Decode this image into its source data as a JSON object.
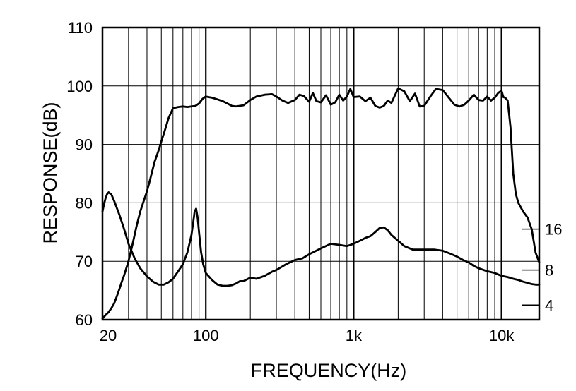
{
  "chart_data": {
    "type": "line",
    "title": "",
    "xlabel": "FREQUENCY(Hz)",
    "ylabel": "RESPONSE(dB)",
    "x_scale": "log",
    "xlim": [
      20,
      18000
    ],
    "ylim": [
      60,
      110
    ],
    "grid": true,
    "x_tick_labels": [
      {
        "value": 20,
        "label": "20"
      },
      {
        "value": 100,
        "label": "100"
      },
      {
        "value": 1000,
        "label": "1k"
      },
      {
        "value": 10000,
        "label": "10k"
      }
    ],
    "y_tick_labels": [
      {
        "value": 60,
        "label": "60"
      },
      {
        "value": 70,
        "label": "70"
      },
      {
        "value": 80,
        "label": "80"
      },
      {
        "value": 90,
        "label": "90"
      },
      {
        "value": 100,
        "label": "100"
      },
      {
        "value": 110,
        "label": "110"
      }
    ],
    "side_scale": [
      {
        "value": 75.5,
        "label": "16"
      },
      {
        "value": 68.5,
        "label": "8"
      },
      {
        "value": 62.5,
        "label": "4"
      }
    ],
    "series": [
      {
        "x": [
          20,
          21,
          22,
          23,
          24,
          25,
          26,
          27,
          28,
          30,
          32,
          34,
          36,
          38,
          40,
          42,
          45,
          48,
          50,
          53,
          56,
          60,
          65,
          70,
          75,
          80,
          85,
          90,
          95,
          100,
          110,
          120,
          130,
          140,
          150,
          160,
          180,
          200,
          220,
          250,
          280,
          300,
          330,
          360,
          400,
          430,
          460,
          500,
          530,
          560,
          600,
          650,
          700,
          750,
          800,
          850,
          900,
          950,
          1000,
          1100,
          1200,
          1300,
          1400,
          1500,
          1600,
          1700,
          1800,
          2000,
          2200,
          2400,
          2600,
          2800,
          3000,
          3300,
          3600,
          4000,
          4400,
          4800,
          5200,
          5600,
          6000,
          6500,
          7000,
          7500,
          8000,
          8500,
          9000,
          9500,
          10000,
          10300,
          10600,
          11000,
          11500,
          12000,
          12500,
          13000,
          14000,
          15000,
          16000,
          17000,
          18000
        ],
        "y": [
          60.2,
          60.8,
          61.3,
          62.0,
          62.8,
          64.0,
          65.2,
          66.5,
          67.6,
          70.0,
          73.0,
          76.0,
          78.5,
          80.3,
          82.0,
          84.0,
          87.0,
          89.0,
          90.5,
          92.5,
          94.5,
          96.2,
          96.4,
          96.5,
          96.4,
          96.5,
          96.6,
          97.0,
          97.8,
          98.2,
          98.0,
          97.7,
          97.4,
          97.0,
          96.6,
          96.5,
          96.7,
          97.6,
          98.2,
          98.5,
          98.6,
          98.2,
          97.5,
          97.1,
          97.6,
          98.5,
          98.3,
          97.3,
          98.8,
          97.4,
          97.2,
          98.4,
          96.8,
          97.2,
          98.5,
          97.5,
          98.2,
          99.5,
          98.1,
          98.2,
          97.4,
          98.0,
          96.6,
          96.3,
          96.6,
          97.5,
          97.1,
          99.6,
          99.1,
          97.4,
          98.7,
          96.5,
          96.6,
          98.2,
          99.5,
          99.3,
          98.0,
          96.8,
          96.5,
          96.8,
          97.5,
          98.5,
          97.6,
          97.5,
          98.2,
          97.5,
          98.0,
          98.8,
          99.2,
          98.1,
          98.0,
          97.5,
          93.0,
          85.0,
          81.5,
          80.0,
          78.5,
          77.5,
          75.5,
          71.5,
          69.8
        ]
      },
      {
        "x": [
          20,
          20.5,
          21,
          21.5,
          22,
          23,
          24,
          26,
          28,
          30,
          33,
          36,
          40,
          44,
          48,
          52,
          56,
          60,
          65,
          70,
          75,
          80,
          82,
          84,
          86,
          88,
          90,
          93,
          96,
          100,
          110,
          120,
          130,
          140,
          150,
          160,
          170,
          180,
          200,
          220,
          250,
          280,
          300,
          350,
          400,
          450,
          500,
          600,
          700,
          800,
          900,
          1000,
          1100,
          1200,
          1300,
          1400,
          1500,
          1600,
          1700,
          1800,
          2000,
          2200,
          2500,
          3000,
          3500,
          4000,
          4500,
          5000,
          5500,
          6000,
          6500,
          7000,
          8000,
          9000,
          10000,
          11000,
          12000,
          13000,
          14000,
          15000,
          16000,
          17000,
          18000
        ],
        "y": [
          78.5,
          79.8,
          80.8,
          81.5,
          81.8,
          81.4,
          80.3,
          78.0,
          75.5,
          73.0,
          70.5,
          68.8,
          67.4,
          66.5,
          66.0,
          66.0,
          66.4,
          67.0,
          68.3,
          69.5,
          71.5,
          74.5,
          76.5,
          78.5,
          79.0,
          77.5,
          75.0,
          71.5,
          69.5,
          68.0,
          66.8,
          66.0,
          65.8,
          65.8,
          65.9,
          66.2,
          66.6,
          66.6,
          67.2,
          67.0,
          67.5,
          68.2,
          68.5,
          69.5,
          70.2,
          70.5,
          71.2,
          72.2,
          73.0,
          72.8,
          72.6,
          73.0,
          73.5,
          74.0,
          74.3,
          75.0,
          75.7,
          75.8,
          75.3,
          74.5,
          73.5,
          72.6,
          72.0,
          72.0,
          72.0,
          71.8,
          71.3,
          70.8,
          70.2,
          69.8,
          69.2,
          68.8,
          68.3,
          68.0,
          67.5,
          67.3,
          67.0,
          66.8,
          66.5,
          66.3,
          66.1,
          66.0,
          66.0
        ]
      }
    ]
  }
}
